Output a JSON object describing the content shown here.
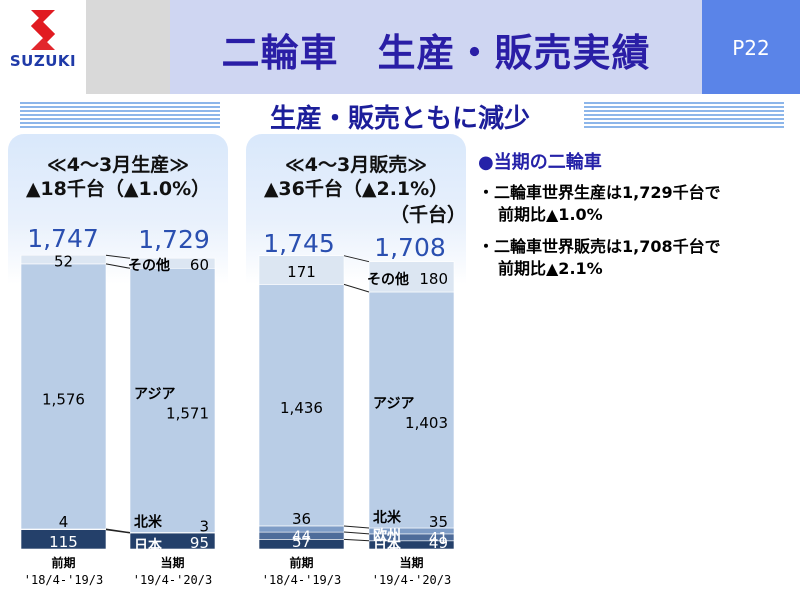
{
  "header": {
    "logo_text": "SUZUKI",
    "title": "二輪車　生産・販売実績",
    "page": "P22"
  },
  "subtitle": "生産・販売ともに減少",
  "panels": [
    {
      "line1": "≪4～3月生産≫",
      "line2": "▲18千台（▲1.0%）",
      "line3": ""
    },
    {
      "line1": "≪4～3月販売≫",
      "line2": "▲36千台（▲2.1%）",
      "line3": "（千台）"
    }
  ],
  "notes": {
    "heading": "●当期の二輪車",
    "bullets": [
      {
        "line1": "・二輪車世界生産は1,729千台で",
        "line2": "前期比▲1.0%"
      },
      {
        "line1": "・二輪車世界販売は1,708千台で",
        "line2": "前期比▲2.1%"
      }
    ]
  },
  "colors": {
    "japan": "#24406a",
    "europe": "#4e6c9a",
    "north_america": "#7e9cc6",
    "asia": "#b9cde6",
    "other": "#dce6f2",
    "total_text": "#2a4fb0",
    "title_text": "#2a1ea6"
  },
  "chart_data": [
    {
      "type": "bar",
      "stacked": true,
      "title": "≪4～3月生産≫",
      "categories": [
        "前期\n'18/4-'19/3",
        "当期\n'19/4-'20/3"
      ],
      "categories_line1": [
        "前期",
        "当期"
      ],
      "categories_line2": [
        "'18/4-'19/3",
        "'19/4-'20/3"
      ],
      "totals": [
        "1,747",
        "1,729"
      ],
      "total_values": [
        1747,
        1729
      ],
      "series": [
        {
          "name": "日本",
          "values": [
            115,
            95
          ],
          "labels": [
            "115",
            "95"
          ]
        },
        {
          "name": "北米",
          "values": [
            4,
            3
          ],
          "labels": [
            "4",
            "3"
          ]
        },
        {
          "name": "アジア",
          "values": [
            1576,
            1571
          ],
          "labels": [
            "1,576",
            "1,571"
          ]
        },
        {
          "name": "その他",
          "values": [
            52,
            60
          ],
          "labels": [
            "52",
            "60"
          ]
        }
      ],
      "ylim": [
        0,
        1750
      ]
    },
    {
      "type": "bar",
      "stacked": true,
      "title": "≪4～3月販売≫",
      "unit": "千台",
      "categories": [
        "前期\n'18/4-'19/3",
        "当期\n'19/4-'20/3"
      ],
      "categories_line1": [
        "前期",
        "当期"
      ],
      "categories_line2": [
        "'18/4-'19/3",
        "'19/4-'20/3"
      ],
      "totals": [
        "1,745",
        "1,708"
      ],
      "total_values": [
        1745,
        1708
      ],
      "series": [
        {
          "name": "日本",
          "values": [
            57,
            49
          ],
          "labels": [
            "57",
            "49"
          ]
        },
        {
          "name": "欧州",
          "values": [
            44,
            41
          ],
          "labels": [
            "44",
            "41"
          ]
        },
        {
          "name": "北米",
          "values": [
            36,
            35
          ],
          "labels": [
            "36",
            "35"
          ]
        },
        {
          "name": "アジア",
          "values": [
            1436,
            1403
          ],
          "labels": [
            "1,436",
            "1,403"
          ]
        },
        {
          "name": "その他",
          "values": [
            171,
            180
          ],
          "labels": [
            "171",
            "180"
          ]
        }
      ],
      "ylim": [
        0,
        1750
      ]
    }
  ]
}
